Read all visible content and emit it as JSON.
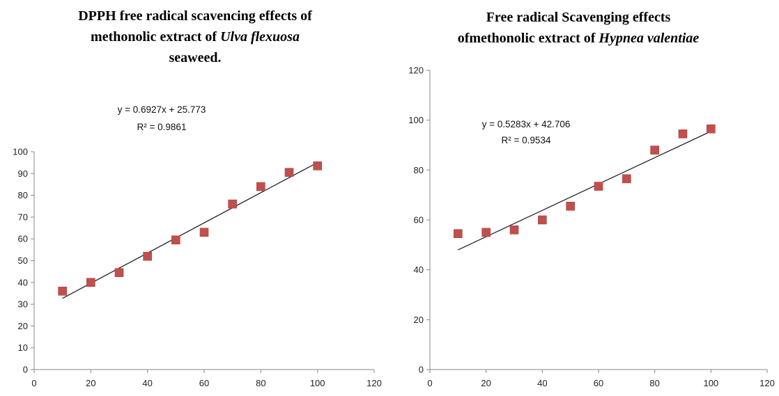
{
  "chart_data": [
    {
      "type": "scatter",
      "title_parts": [
        "DPPH free radical scavencing effects of",
        "methonolic extract of ",
        "Ulva flexuosa",
        "seaweed."
      ],
      "xlabel": "",
      "ylabel": "",
      "xlim": [
        0,
        120
      ],
      "ylim": [
        0,
        100
      ],
      "x_ticks": [
        0,
        20,
        40,
        60,
        80,
        100,
        120
      ],
      "y_ticks": [
        0,
        10,
        20,
        30,
        40,
        50,
        60,
        70,
        80,
        90,
        100
      ],
      "x": [
        10,
        20,
        30,
        40,
        50,
        60,
        70,
        80,
        90,
        100
      ],
      "y": [
        36,
        40,
        44.5,
        52,
        59.5,
        63,
        76,
        84,
        90.5,
        93.5
      ],
      "trendline": {
        "slope": 0.6927,
        "intercept": 25.773,
        "x_range": [
          10,
          100
        ]
      },
      "equation": "y = 0.6927x + 25.773",
      "r2_label": "R² = 0.9861",
      "marker_color": "#c0504d",
      "grid": false
    },
    {
      "type": "scatter",
      "title_parts": [
        "Free radical Scavenging effects",
        "ofmethonolic extract of ",
        "Hypnea valentiae"
      ],
      "xlabel": "",
      "ylabel": "",
      "xlim": [
        0,
        120
      ],
      "ylim": [
        0,
        120
      ],
      "x_ticks": [
        0,
        20,
        40,
        60,
        80,
        100,
        120
      ],
      "y_ticks": [
        0,
        20,
        40,
        60,
        80,
        100,
        120
      ],
      "x": [
        10,
        20,
        30,
        40,
        50,
        60,
        70,
        80,
        90,
        100
      ],
      "y": [
        54.5,
        55,
        56,
        60,
        65.5,
        73.5,
        76.5,
        88,
        94.5,
        96.5
      ],
      "trendline": {
        "slope": 0.5283,
        "intercept": 42.706,
        "x_range": [
          10,
          100
        ]
      },
      "equation": "y = 0.5283x + 42.706",
      "r2_label": "R² = 0.9534",
      "marker_color": "#c0504d",
      "grid": false
    }
  ]
}
